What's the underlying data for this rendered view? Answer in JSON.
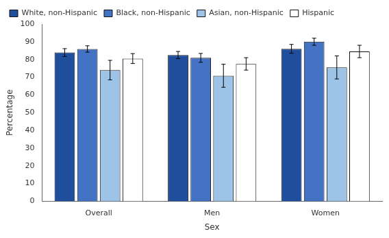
{
  "chart_data": {
    "type": "bar",
    "categories": [
      "Overall",
      "Men",
      "Women"
    ],
    "series": [
      {
        "name": "White, non-Hispanic",
        "color": "#1f4e9c",
        "values": [
          83.9,
          82.5,
          86.0
        ],
        "errors": [
          2.2,
          2.0,
          2.5
        ]
      },
      {
        "name": "Black, non-Hispanic",
        "color": "#4472c4",
        "values": [
          85.9,
          80.9,
          90.0
        ],
        "errors": [
          1.8,
          2.5,
          2.0
        ]
      },
      {
        "name": "Asian, non-Hispanic",
        "color": "#9dc3e6",
        "values": [
          74.0,
          70.8,
          75.5
        ],
        "errors": [
          5.5,
          6.5,
          6.5
        ]
      },
      {
        "name": "Hispanic",
        "color": "#ffffff",
        "values": [
          80.5,
          77.5,
          84.5
        ],
        "errors": [
          2.8,
          3.5,
          3.5
        ]
      }
    ],
    "xlabel": "Sex",
    "ylabel": "Percentage",
    "ylim": [
      0,
      100
    ],
    "yticks": [
      0,
      10,
      20,
      30,
      40,
      50,
      60,
      70,
      80,
      90,
      100
    ],
    "grid": false,
    "legend": "upper left"
  }
}
